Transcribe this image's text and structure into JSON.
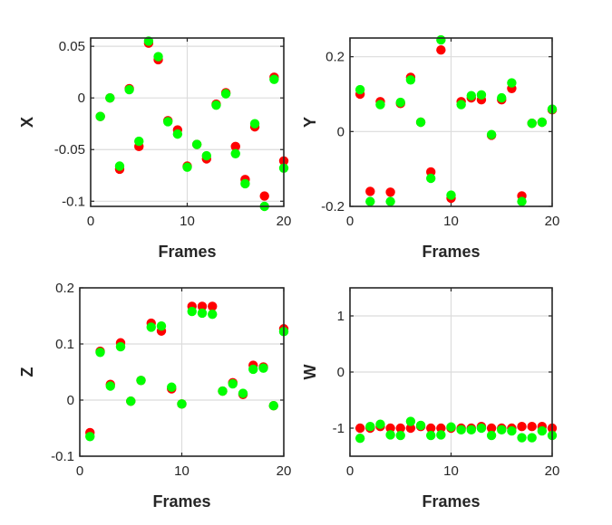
{
  "colors": {
    "series_red": "#ff0000",
    "series_green": "#00ff00",
    "axis": "#262626",
    "grid": "#dcdcdc"
  },
  "chart_data": [
    {
      "type": "scatter",
      "xlabel": "Frames",
      "ylabel": "X",
      "xlim": [
        0,
        20
      ],
      "ylim": [
        -0.105,
        0.058
      ],
      "xticks": [
        "0",
        "10",
        "20"
      ],
      "yticks": [
        "0.05",
        "0",
        "-0.05",
        "-0.1"
      ],
      "ytick_values": [
        0.05,
        0,
        -0.05,
        -0.1
      ],
      "grid": true,
      "x": [
        1,
        2,
        3,
        4,
        5,
        6,
        7,
        8,
        9,
        10,
        11,
        12,
        13,
        14,
        15,
        16,
        17,
        18,
        19,
        20
      ],
      "series": [
        {
          "color": "#ff0000",
          "values": [
            -0.018,
            0.0,
            -0.069,
            0.009,
            -0.047,
            0.053,
            0.037,
            -0.022,
            -0.031,
            -0.066,
            -0.045,
            -0.059,
            -0.006,
            0.005,
            -0.047,
            -0.079,
            -0.028,
            -0.095,
            0.02,
            -0.061
          ]
        },
        {
          "color": "#00ff00",
          "values": [
            -0.018,
            0.0,
            -0.066,
            0.008,
            -0.042,
            0.055,
            0.04,
            -0.023,
            -0.035,
            -0.067,
            -0.045,
            -0.056,
            -0.007,
            0.004,
            -0.054,
            -0.083,
            -0.025,
            -0.105,
            0.018,
            -0.068
          ]
        }
      ]
    },
    {
      "type": "scatter",
      "xlabel": "Frames",
      "ylabel": "Y",
      "xlim": [
        0,
        20
      ],
      "ylim": [
        -0.2,
        0.25
      ],
      "xticks": [
        "0",
        "10",
        "20"
      ],
      "yticks": [
        "0.2",
        "0",
        "-0.2"
      ],
      "ytick_values": [
        0.2,
        0,
        -0.2
      ],
      "grid": true,
      "x": [
        1,
        2,
        3,
        4,
        5,
        6,
        7,
        8,
        9,
        10,
        11,
        12,
        13,
        14,
        15,
        16,
        17,
        18,
        19,
        20
      ],
      "series": [
        {
          "color": "#ff0000",
          "values": [
            0.1,
            -0.16,
            0.08,
            -0.162,
            0.075,
            0.145,
            0.025,
            -0.108,
            0.218,
            -0.178,
            0.08,
            0.09,
            0.085,
            -0.01,
            0.085,
            0.115,
            -0.172,
            0.022,
            0.025,
            0.058
          ]
        },
        {
          "color": "#00ff00",
          "values": [
            0.112,
            -0.187,
            0.072,
            -0.187,
            0.078,
            0.138,
            0.025,
            -0.125,
            0.245,
            -0.17,
            0.072,
            0.096,
            0.098,
            -0.008,
            0.09,
            0.13,
            -0.187,
            0.022,
            0.025,
            0.06
          ]
        }
      ]
    },
    {
      "type": "scatter",
      "xlabel": "Frames",
      "ylabel": "Z",
      "xlim": [
        0,
        20
      ],
      "ylim": [
        -0.1,
        0.2
      ],
      "xticks": [
        "0",
        "10",
        "20"
      ],
      "yticks": [
        "0.2",
        "0.1",
        "0",
        "-0.1"
      ],
      "ytick_values": [
        0.2,
        0.1,
        0,
        -0.1
      ],
      "grid": true,
      "x": [
        1,
        2,
        3,
        4,
        5,
        6,
        7,
        8,
        9,
        10,
        11,
        12,
        13,
        14,
        15,
        16,
        17,
        18,
        19,
        20
      ],
      "series": [
        {
          "color": "#ff0000",
          "values": [
            -0.058,
            0.087,
            0.028,
            0.102,
            -0.002,
            0.035,
            0.137,
            0.123,
            0.02,
            -0.007,
            0.167,
            0.167,
            0.167,
            0.016,
            0.031,
            0.01,
            0.062,
            0.059,
            -0.01,
            0.127
          ]
        },
        {
          "color": "#00ff00",
          "values": [
            -0.065,
            0.085,
            0.025,
            0.095,
            -0.002,
            0.035,
            0.13,
            0.132,
            0.023,
            -0.007,
            0.158,
            0.155,
            0.153,
            0.016,
            0.029,
            0.012,
            0.055,
            0.057,
            -0.01,
            0.122
          ]
        }
      ]
    },
    {
      "type": "scatter",
      "xlabel": "Frames",
      "ylabel": "W",
      "xlim": [
        0,
        20
      ],
      "ylim": [
        -1.5,
        1.5
      ],
      "xticks": [
        "0",
        "10",
        "20"
      ],
      "yticks": [
        "1",
        "0",
        "-1"
      ],
      "ytick_values": [
        1,
        0,
        -1
      ],
      "grid": true,
      "x": [
        1,
        2,
        3,
        4,
        5,
        6,
        7,
        8,
        9,
        10,
        11,
        12,
        13,
        14,
        15,
        16,
        17,
        18,
        19,
        20
      ],
      "series": [
        {
          "color": "#ff0000",
          "values": [
            -1.0,
            -1.0,
            -0.97,
            -1.0,
            -1.0,
            -1.0,
            -0.97,
            -1.0,
            -1.0,
            -1.0,
            -1.0,
            -1.0,
            -0.97,
            -1.0,
            -1.0,
            -1.0,
            -0.97,
            -0.97,
            -0.97,
            -1.0
          ]
        },
        {
          "color": "#00ff00",
          "values": [
            -1.18,
            -0.97,
            -0.93,
            -1.12,
            -1.13,
            -0.88,
            -0.95,
            -1.13,
            -1.12,
            -0.98,
            -1.03,
            -1.03,
            -1.0,
            -1.13,
            -1.03,
            -1.05,
            -1.17,
            -1.17,
            -1.05,
            -1.13
          ]
        }
      ]
    }
  ]
}
